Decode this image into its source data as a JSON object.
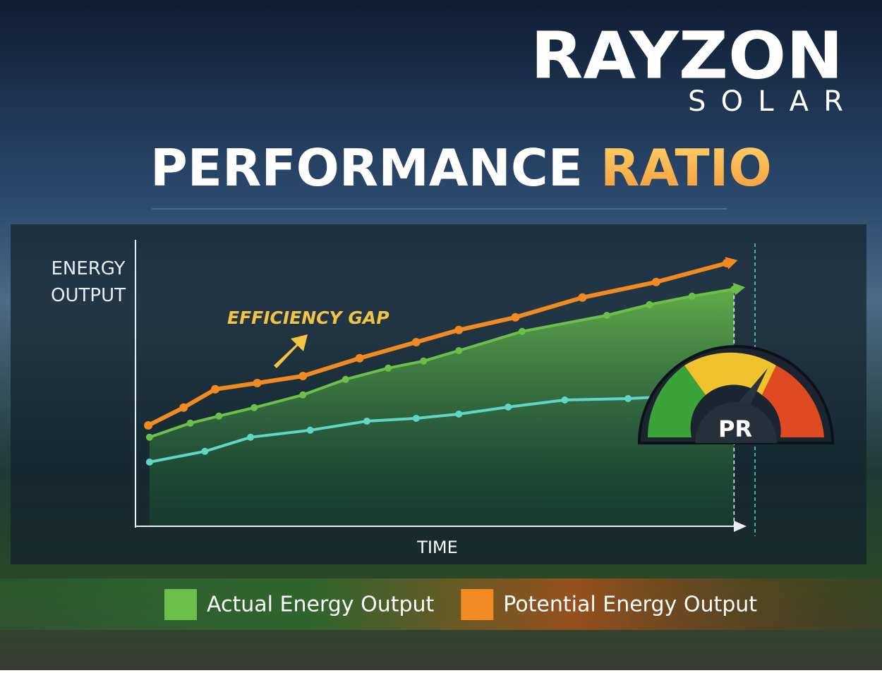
{
  "brand": {
    "name": "RAYZON",
    "tagline": "SOLAR"
  },
  "chart_data": {
    "type": "line",
    "title": "PERFORMANCE",
    "title_accent": "RATIO",
    "y_label": "ENERGY OUTPUT",
    "x_label": "TIME",
    "annotation": "EFFICIENCY GAP",
    "gauge_label": "PR",
    "xlim": [
      0,
      100
    ],
    "ylim": [
      0,
      100
    ],
    "series": [
      {
        "name": "Potential Energy Output",
        "color": "#f28a22",
        "x": [
          2.1,
          7.9,
          13.1,
          20.0,
          27.5,
          36.8,
          46.1,
          53.1,
          62.4,
          73.4,
          85.5,
          97.1
        ],
        "values": [
          35.5,
          41.8,
          48.3,
          50.5,
          53,
          59.3,
          65,
          69.3,
          73.8,
          80.8,
          86.3,
          93
        ]
      },
      {
        "name": "Actual Energy Output",
        "color": "#6cc04a",
        "x": [
          2.3,
          9.0,
          13.7,
          19.5,
          27.5,
          34.5,
          41.5,
          47.3,
          53.1,
          63.5,
          77.4,
          84.4,
          91.4,
          98.3
        ],
        "values": [
          31.3,
          36.3,
          38.8,
          41.8,
          46.3,
          51.8,
          55.8,
          58.3,
          62,
          68.8,
          74.5,
          78.3,
          81.3,
          83.8
        ]
      },
      {
        "color": "#5fd6c8",
        "x": [
          2.3,
          11.4,
          18.9,
          28.7,
          38,
          46.1,
          53.1,
          61.2,
          70.5,
          80.9,
          85.5
        ],
        "values": [
          22.5,
          26.3,
          31.3,
          33.8,
          37,
          38,
          39.5,
          42,
          44.5,
          45,
          45.5
        ]
      }
    ]
  }
}
